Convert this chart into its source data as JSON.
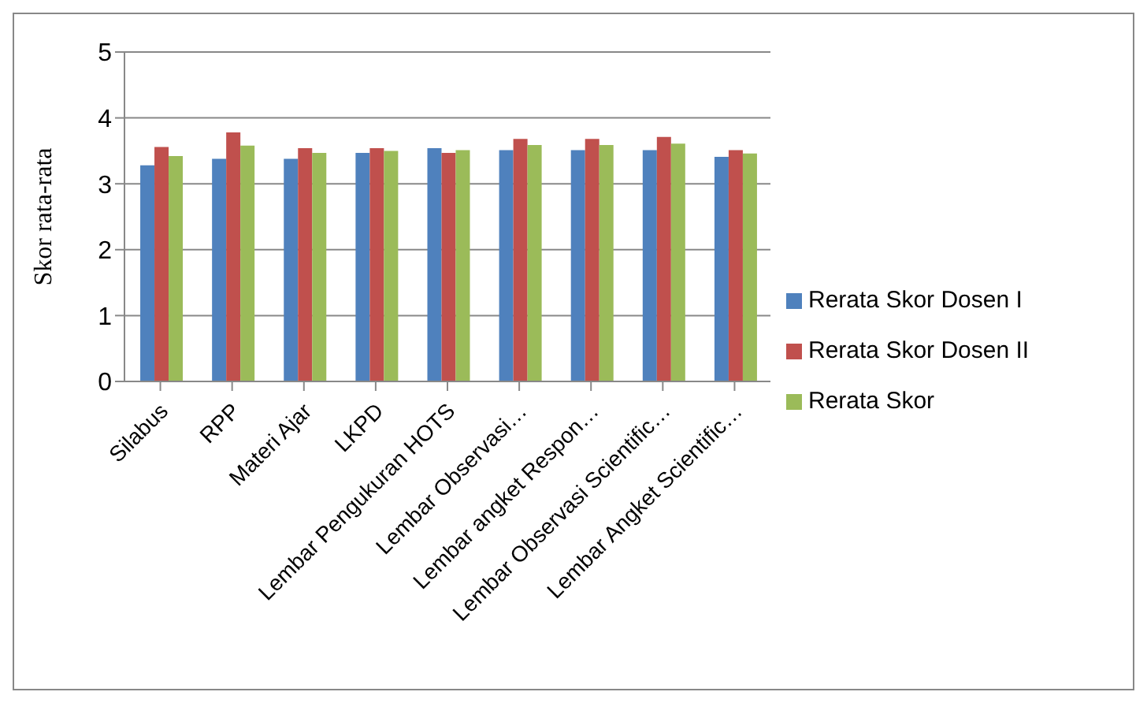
{
  "chart_data": {
    "type": "bar",
    "ylabel": "Skor rata-rata",
    "categories": [
      "Silabus",
      "RPP",
      "Materi Ajar",
      "LKPD",
      "Lembar Pengukuran HOTS",
      "Lembar Observasi…",
      "Lembar angket Respon…",
      "Lembar Observasi Scientific…",
      "Lembar Angket Scientific…"
    ],
    "series": [
      {
        "name": "Rerata Skor Dosen I",
        "color": "#4f81bd",
        "values": [
          3.28,
          3.38,
          3.38,
          3.47,
          3.54,
          3.51,
          3.51,
          3.51,
          3.41
        ]
      },
      {
        "name": "Rerata Skor Dosen II",
        "color": "#c0504d",
        "values": [
          3.56,
          3.78,
          3.54,
          3.54,
          3.47,
          3.68,
          3.68,
          3.71,
          3.51
        ]
      },
      {
        "name": "Rerata Skor",
        "color": "#9bbb59",
        "values": [
          3.42,
          3.58,
          3.47,
          3.5,
          3.51,
          3.59,
          3.59,
          3.61,
          3.46
        ]
      }
    ],
    "ylim": [
      0,
      5
    ],
    "yticks": [
      0,
      1,
      2,
      3,
      4,
      5
    ],
    "grid": "y",
    "legend": "right"
  }
}
